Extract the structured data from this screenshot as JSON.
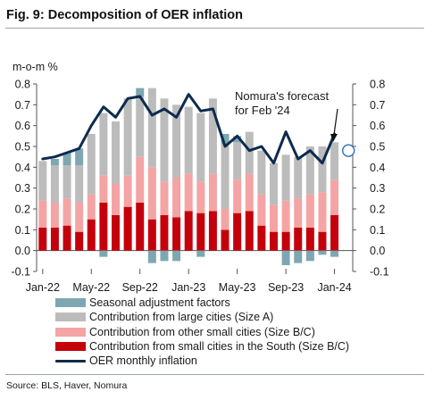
{
  "figure": {
    "title": "Fig. 9: Decomposition of OER inflation",
    "source": "Source: BLS, Haver, Nomura"
  },
  "chart_data": {
    "type": "bar",
    "stacked": true,
    "unit_label": "m-o-m %",
    "ylim": [
      -0.1,
      0.8
    ],
    "yticks": [
      "-0.1",
      "0.0",
      "0.1",
      "0.2",
      "0.3",
      "0.4",
      "0.5",
      "0.6",
      "0.7",
      "0.8"
    ],
    "xticks": [
      "Jan-22",
      "May-22",
      "Sep-22",
      "Jan-23",
      "May-23",
      "Sep-23",
      "Jan-24"
    ],
    "categories": [
      "Jan-22",
      "Feb-22",
      "Mar-22",
      "Apr-22",
      "May-22",
      "Jun-22",
      "Jul-22",
      "Aug-22",
      "Sep-22",
      "Oct-22",
      "Nov-22",
      "Dec-22",
      "Jan-23",
      "Feb-23",
      "Mar-23",
      "Apr-23",
      "May-23",
      "Jun-23",
      "Jul-23",
      "Aug-23",
      "Sep-23",
      "Oct-23",
      "Nov-23",
      "Dec-23",
      "Jan-24"
    ],
    "legend_position": "bottom",
    "grid": false,
    "series": [
      {
        "name": "Seasonal adjustment factors",
        "color": "#7fa7b1",
        "values": [
          0.0,
          0.03,
          0.06,
          0.08,
          0.0,
          -0.03,
          0.0,
          0.0,
          0.04,
          -0.06,
          -0.05,
          -0.05,
          0.0,
          -0.03,
          0.0,
          0.05,
          0.03,
          0.0,
          0.0,
          0.0,
          -0.07,
          -0.06,
          -0.05,
          -0.02,
          -0.03
        ]
      },
      {
        "name": "Contribution from large cities (Size A)",
        "color": "#bcbcbc",
        "values": [
          0.19,
          0.18,
          0.16,
          0.18,
          0.29,
          0.3,
          0.3,
          0.37,
          0.29,
          0.38,
          0.4,
          0.35,
          0.32,
          0.33,
          0.36,
          0.31,
          0.18,
          0.2,
          0.21,
          0.2,
          0.22,
          0.2,
          0.23,
          0.22,
          0.18
        ]
      },
      {
        "name": "Contribution from other small cities (Size B/C)",
        "color": "#f4a4a4",
        "values": [
          0.13,
          0.12,
          0.13,
          0.14,
          0.12,
          0.13,
          0.15,
          0.15,
          0.22,
          0.25,
          0.16,
          0.19,
          0.18,
          0.15,
          0.18,
          0.1,
          0.16,
          0.18,
          0.15,
          0.13,
          0.15,
          0.14,
          0.16,
          0.19,
          0.17
        ]
      },
      {
        "name": "Contribution from small cities in the South (Size B/C)",
        "color": "#c4000b",
        "values": [
          0.11,
          0.11,
          0.12,
          0.09,
          0.15,
          0.23,
          0.17,
          0.21,
          0.23,
          0.15,
          0.17,
          0.16,
          0.19,
          0.18,
          0.19,
          0.1,
          0.18,
          0.19,
          0.12,
          0.09,
          0.09,
          0.11,
          0.11,
          0.09,
          0.17
        ]
      }
    ],
    "line": {
      "name": "OER monthly inflation",
      "color": "#0c2b4e",
      "values": [
        0.44,
        0.45,
        0.47,
        0.49,
        0.6,
        0.69,
        0.64,
        0.73,
        0.74,
        0.65,
        0.68,
        0.64,
        0.75,
        0.67,
        0.68,
        0.5,
        0.55,
        0.48,
        0.5,
        0.42,
        0.57,
        0.44,
        0.48,
        0.42,
        0.56
      ]
    },
    "forecast": {
      "label_line1": "Nomura's forecast",
      "label_line2": "for Feb '24",
      "category": "Feb-24",
      "value": 0.48
    }
  }
}
